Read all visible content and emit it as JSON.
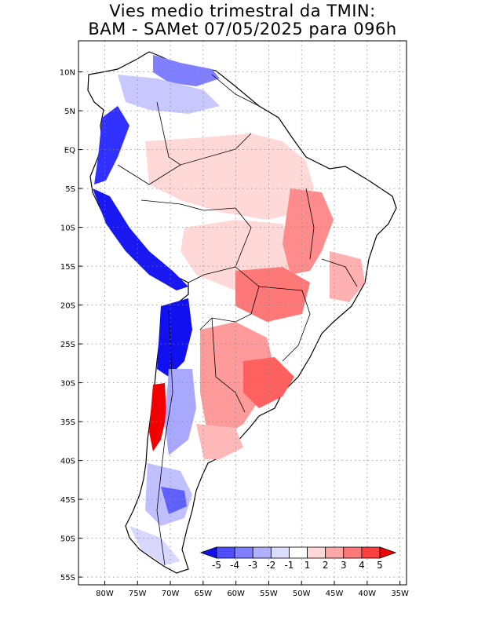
{
  "title": {
    "line1": "Vies medio trimestral da TMIN:",
    "line2": "BAM - SAMet 07/05/2025  para 096h"
  },
  "map": {
    "lon_range": [
      -84,
      -34
    ],
    "lat_range": [
      -56,
      14
    ],
    "lon_ticks": [
      "80W",
      "75W",
      "70W",
      "65W",
      "60W",
      "55W",
      "50W",
      "45W",
      "40W",
      "35W"
    ],
    "lat_ticks": [
      "10N",
      "5N",
      "EQ",
      "5S",
      "10S",
      "15S",
      "20S",
      "25S",
      "30S",
      "35S",
      "40S",
      "45S",
      "50S",
      "55S"
    ],
    "gridlines": "dotted"
  },
  "colorbar": {
    "labels": [
      "-5",
      "-4",
      "-3",
      "-2",
      "-1",
      "1",
      "2",
      "3",
      "4",
      "5"
    ],
    "colors": [
      "#1010f0",
      "#4f4fff",
      "#8080ff",
      "#b0b0ff",
      "#dcdcff",
      "#ffffff",
      "#ffd8d8",
      "#ffa8a8",
      "#ff7878",
      "#ff4040",
      "#f00000"
    ]
  }
}
